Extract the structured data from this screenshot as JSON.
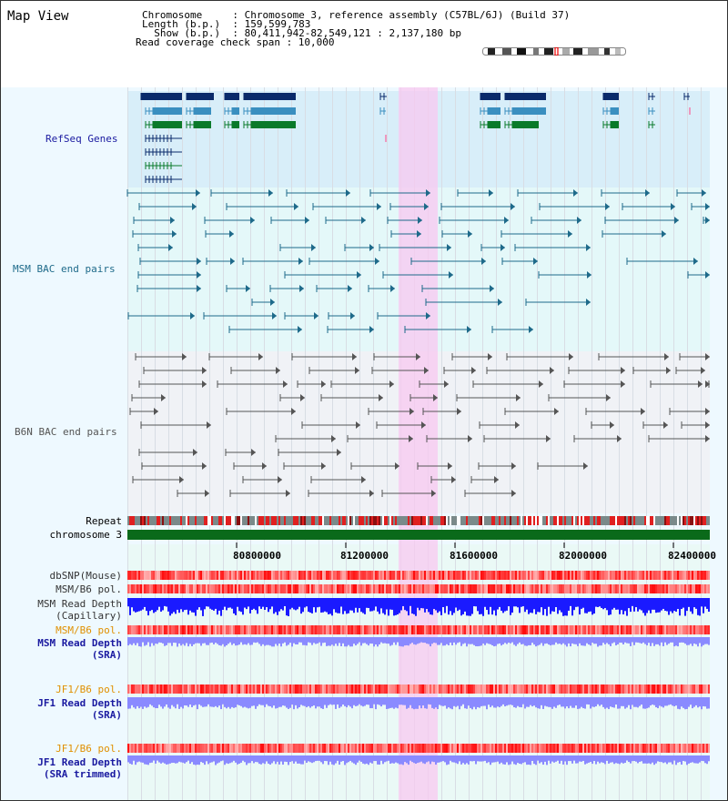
{
  "header": {
    "title": "Map View",
    "info_lines": [
      "Chromosome     : Chromosome 3, reference assembly (C57BL/6J) (Build 37)",
      "Length (b.p.)  : 159,599,783",
      "  Show (b.p.)  : 80,411,942-82,549,121 : 2,137,180 bp",
      "Read coverage check span : 10,000"
    ]
  },
  "tracks": {
    "refseq": "RefSeq Genes",
    "msm_bac": "MSM BAC end pairs",
    "b6n_bac": "B6N BAC end pairs",
    "repeat": "Repeat",
    "chromosome": "chromosome 3",
    "dbsnp": "dbSNP(Mouse)",
    "msm_b6_pol": "MSM/B6 pol.",
    "msm_depth_cap_1": "MSM Read Depth",
    "msm_depth_cap_2": "(Capillary)",
    "msm_b6_pol_sra": "MSM/B6 pol.",
    "msm_depth_sra_1": "MSM Read Depth",
    "msm_depth_sra_2": "(SRA)",
    "jf1_b6_pol_1": "JF1/B6 pol.",
    "jf1_depth_1": "JF1 Read Depth",
    "jf1_depth_2": "(SRA)",
    "jf1_b6_pol_2": "JF1/B6 pol.",
    "jf1_depth_tr_1": "JF1 Read Depth",
    "jf1_depth_tr_2": "(SRA trimmed)"
  },
  "ruler": {
    "ticks": [
      "80800000",
      "81200000",
      "81600000",
      "82000000",
      "82400000"
    ]
  },
  "colors": {
    "refseq_dark": "#0a2a6a",
    "refseq_mid": "#3a8fc0",
    "refseq_green": "#0a7a2a",
    "msm_bac": "#1e6a8a",
    "b6n_bac": "#555555",
    "chromosome": "#0a6a1a",
    "depth_blue": "#1a1aff",
    "depth_light": "#8a8aff",
    "highlight": "#f8c8f0"
  }
}
